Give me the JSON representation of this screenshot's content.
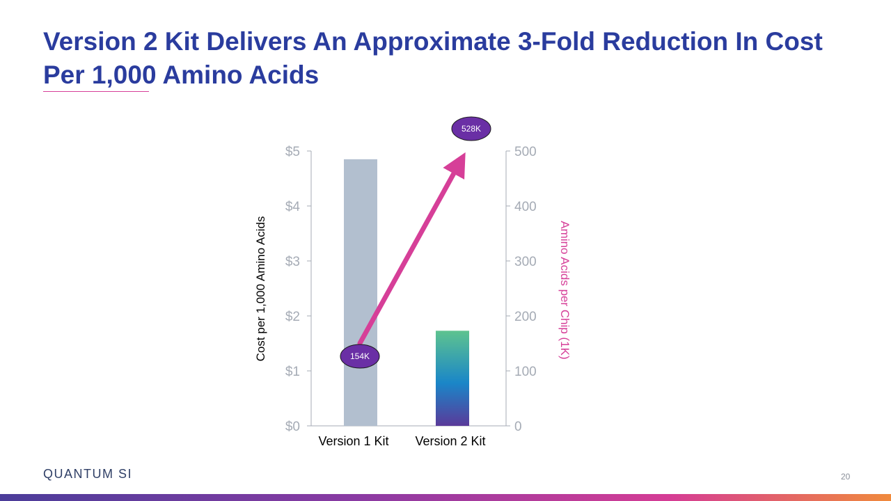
{
  "slide": {
    "title": "Version 2 Kit Delivers An Approximate 3-Fold Reduction In Cost Per 1,000 Amino Acids",
    "logo_text": "QUANTUM SI",
    "page_number": "20"
  },
  "colors": {
    "title": "#2a3c9e",
    "accent_magenta": "#d63f98",
    "bar_v1": "#b2bfcf",
    "bar_v2_top": "#5ec38f",
    "bar_v2_mid": "#1a86c8",
    "bar_v2_bottom": "#5a3a9a",
    "point_fill": "#6a2fa5",
    "axis_grey": "#a5abb5"
  },
  "chart_data": {
    "type": "bar",
    "categories": [
      "Version 1 Kit",
      "Version 2 Kit"
    ],
    "series": [
      {
        "axis": "left",
        "type": "bar",
        "values": [
          4.85,
          1.73
        ]
      },
      {
        "axis": "right",
        "type": "line",
        "values": [
          154,
          528
        ],
        "data_labels": [
          "154K",
          "528K"
        ]
      }
    ],
    "ylabel": "Cost per 1,000 Amino Acids",
    "y2label": "Amino Acids per Chip (1K)",
    "ylim": [
      0,
      5
    ],
    "y2lim": [
      0,
      500
    ],
    "yticks": [
      "$0",
      "$1",
      "$2",
      "$3",
      "$4",
      "$5"
    ],
    "y2ticks": [
      "0",
      "100",
      "200",
      "300",
      "400",
      "500"
    ],
    "grid": false,
    "legend": "none"
  }
}
